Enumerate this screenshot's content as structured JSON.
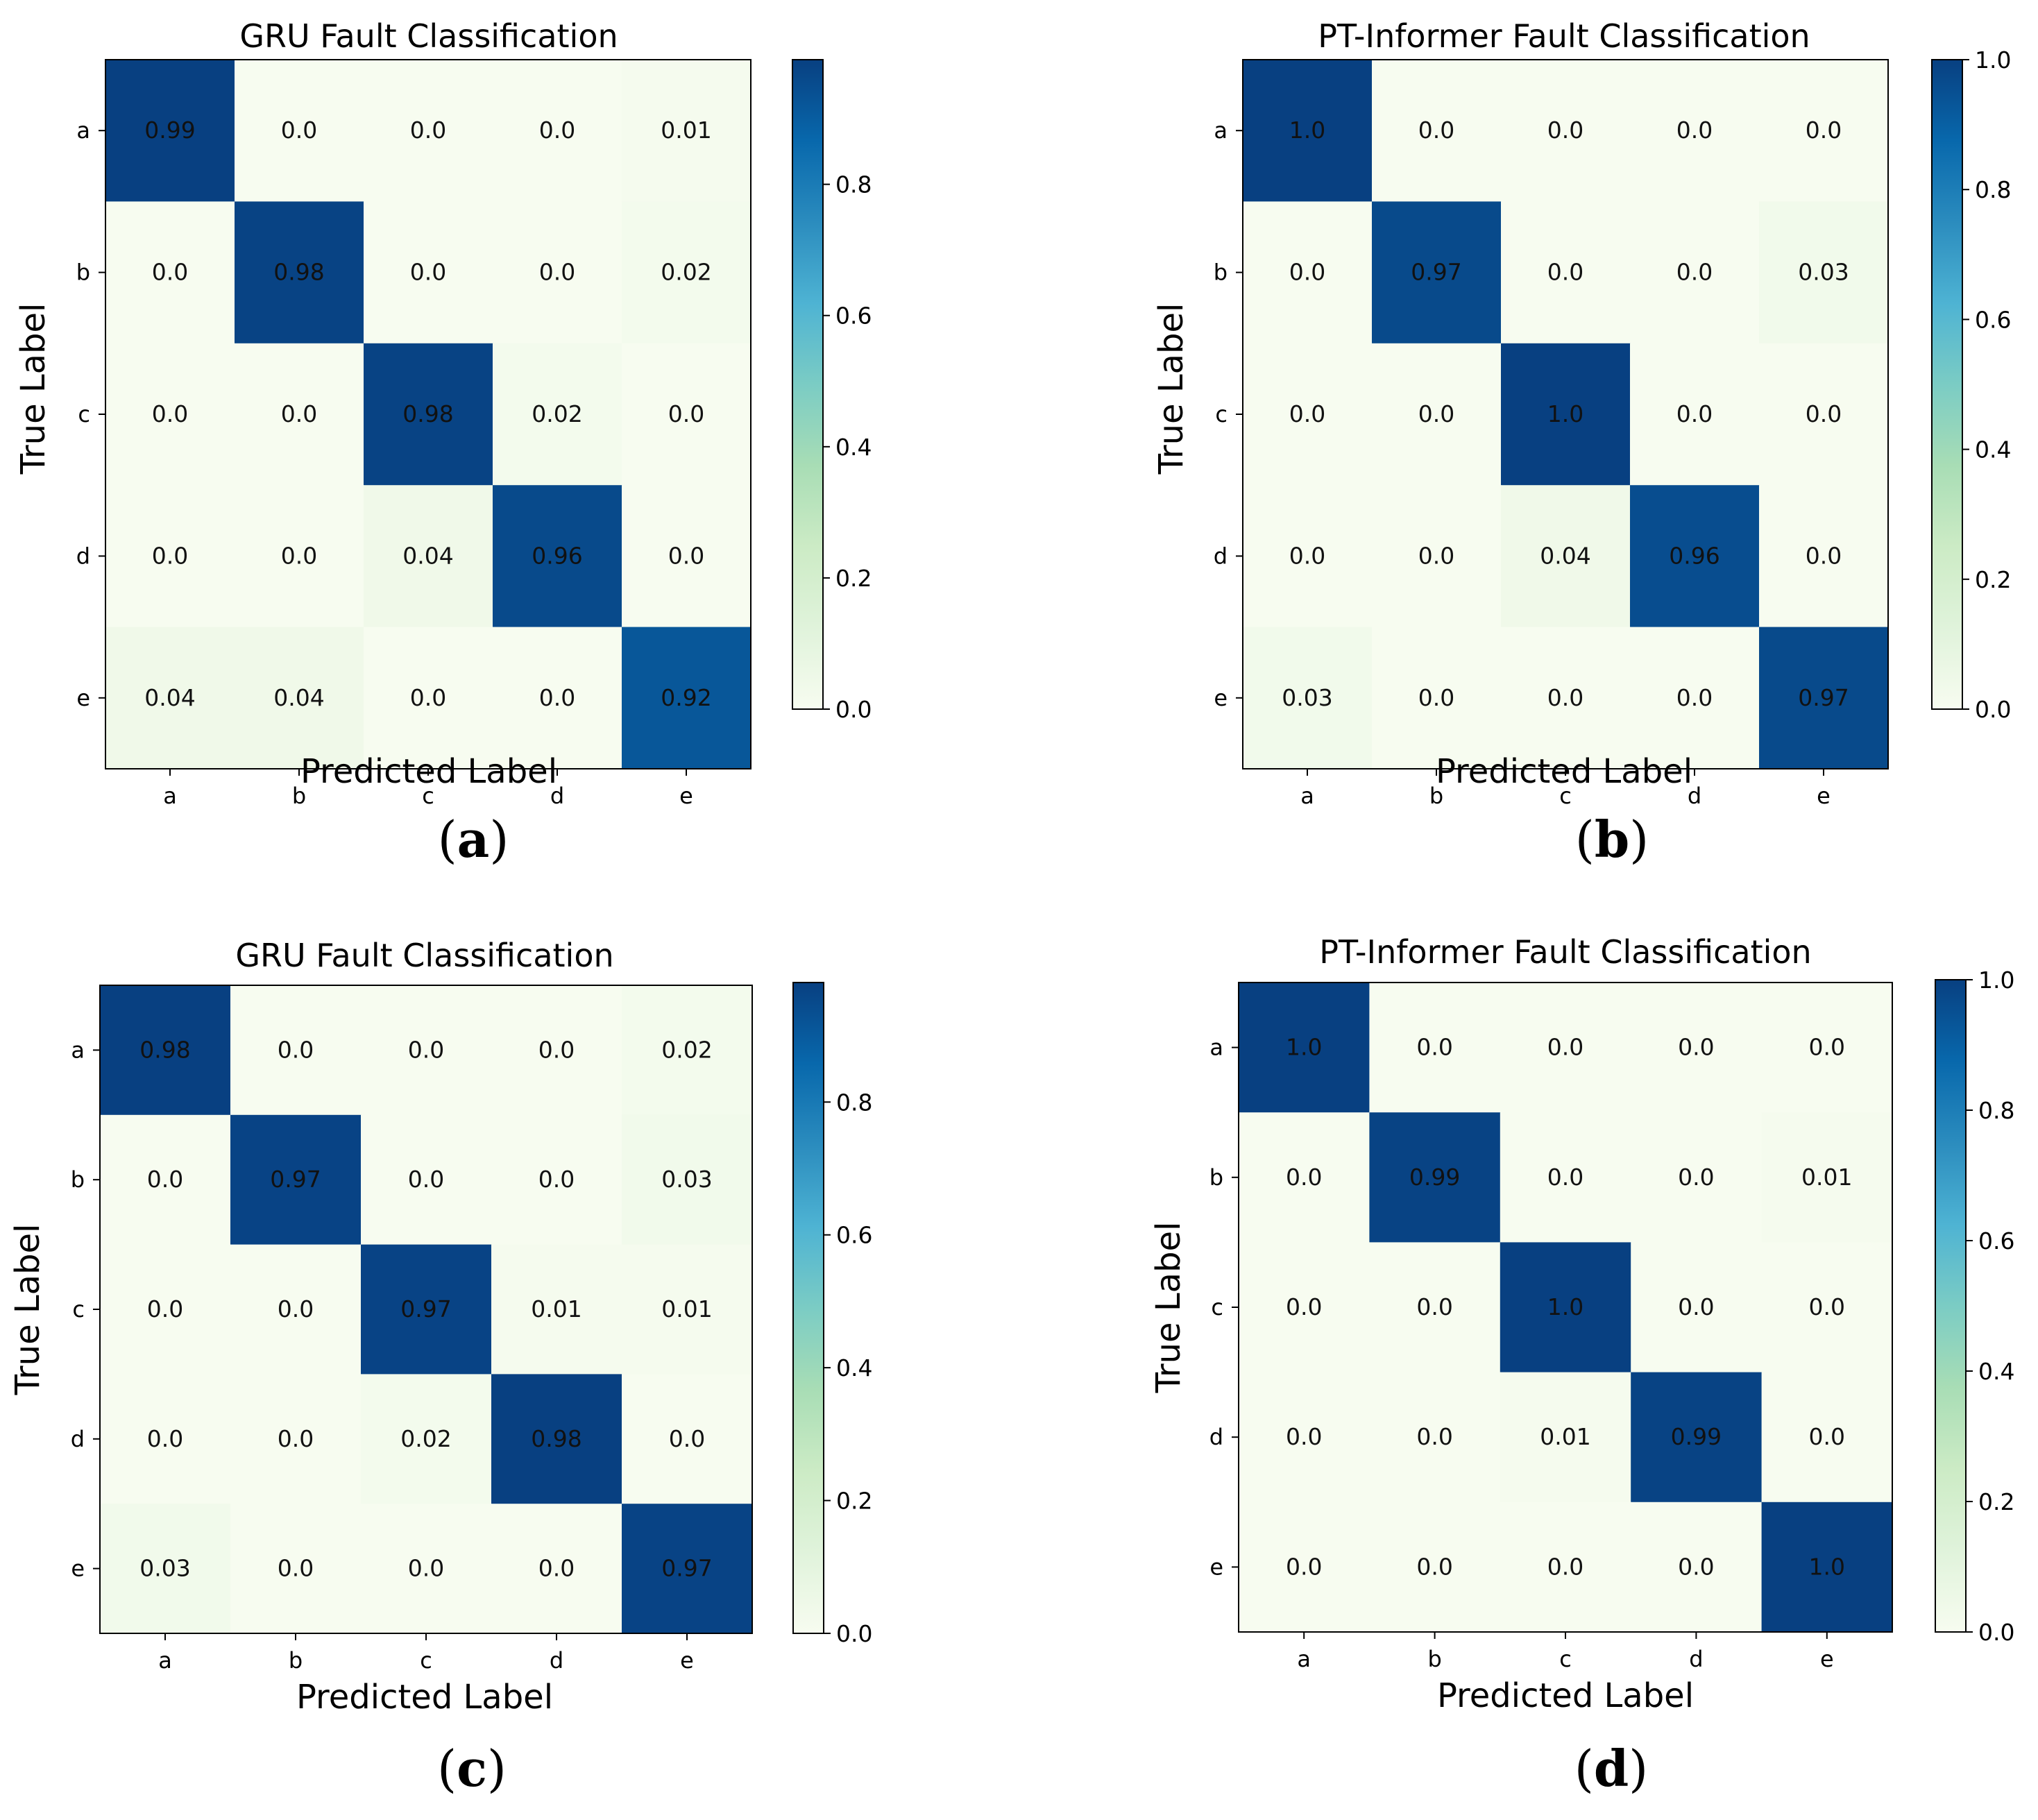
{
  "chart_data": [
    {
      "id": "a",
      "type": "heatmap",
      "title": "GRU Fault Classification",
      "xlabel": "Predicted Label",
      "ylabel": "True Label",
      "x_categories": [
        "a",
        "b",
        "c",
        "d",
        "e"
      ],
      "y_categories": [
        "a",
        "b",
        "c",
        "d",
        "e"
      ],
      "values": [
        [
          0.99,
          0.0,
          0.0,
          0.0,
          0.01
        ],
        [
          0.0,
          0.98,
          0.0,
          0.0,
          0.02
        ],
        [
          0.0,
          0.0,
          0.98,
          0.02,
          0.0
        ],
        [
          0.0,
          0.0,
          0.04,
          0.96,
          0.0
        ],
        [
          0.04,
          0.04,
          0.0,
          0.0,
          0.92
        ]
      ],
      "cell_labels": [
        [
          "0.99",
          "0.0",
          "0.0",
          "0.0",
          "0.01"
        ],
        [
          "0.0",
          "0.98",
          "0.0",
          "0.0",
          "0.02"
        ],
        [
          "0.0",
          "0.0",
          "0.98",
          "0.02",
          "0.0"
        ],
        [
          "0.0",
          "0.0",
          "0.04",
          "0.96",
          "0.0"
        ],
        [
          "0.04",
          "0.04",
          "0.0",
          "0.0",
          "0.92"
        ]
      ],
      "colormap": "GnBu",
      "colorbar_range": [
        0.0,
        0.99
      ],
      "colorbar_ticks": [
        "0.0",
        "0.2",
        "0.4",
        "0.6",
        "0.8"
      ],
      "panel_label": "a"
    },
    {
      "id": "b",
      "type": "heatmap",
      "title": "PT-Informer Fault Classification",
      "xlabel": "Predicted Label",
      "ylabel": "True Label",
      "x_categories": [
        "a",
        "b",
        "c",
        "d",
        "e"
      ],
      "y_categories": [
        "a",
        "b",
        "c",
        "d",
        "e"
      ],
      "values": [
        [
          1.0,
          0.0,
          0.0,
          0.0,
          0.0
        ],
        [
          0.0,
          0.97,
          0.0,
          0.0,
          0.03
        ],
        [
          0.0,
          0.0,
          1.0,
          0.0,
          0.0
        ],
        [
          0.0,
          0.0,
          0.04,
          0.96,
          0.0
        ],
        [
          0.03,
          0.0,
          0.0,
          0.0,
          0.97
        ]
      ],
      "cell_labels": [
        [
          "1.0",
          "0.0",
          "0.0",
          "0.0",
          "0.0"
        ],
        [
          "0.0",
          "0.97",
          "0.0",
          "0.0",
          "0.03"
        ],
        [
          "0.0",
          "0.0",
          "1.0",
          "0.0",
          "0.0"
        ],
        [
          "0.0",
          "0.0",
          "0.04",
          "0.96",
          "0.0"
        ],
        [
          "0.03",
          "0.0",
          "0.0",
          "0.0",
          "0.97"
        ]
      ],
      "colormap": "GnBu",
      "colorbar_range": [
        0.0,
        1.0
      ],
      "colorbar_ticks": [
        "0.0",
        "0.2",
        "0.4",
        "0.6",
        "0.8",
        "1.0"
      ],
      "panel_label": "b"
    },
    {
      "id": "c",
      "type": "heatmap",
      "title": "GRU Fault Classification",
      "xlabel": "Predicted Label",
      "ylabel": "True Label",
      "x_categories": [
        "a",
        "b",
        "c",
        "d",
        "e"
      ],
      "y_categories": [
        "a",
        "b",
        "c",
        "d",
        "e"
      ],
      "values": [
        [
          0.98,
          0.0,
          0.0,
          0.0,
          0.02
        ],
        [
          0.0,
          0.97,
          0.0,
          0.0,
          0.03
        ],
        [
          0.0,
          0.0,
          0.97,
          0.01,
          0.01
        ],
        [
          0.0,
          0.0,
          0.02,
          0.98,
          0.0
        ],
        [
          0.03,
          0.0,
          0.0,
          0.0,
          0.97
        ]
      ],
      "cell_labels": [
        [
          "0.98",
          "0.0",
          "0.0",
          "0.0",
          "0.02"
        ],
        [
          "0.0",
          "0.97",
          "0.0",
          "0.0",
          "0.03"
        ],
        [
          "0.0",
          "0.0",
          "0.97",
          "0.01",
          "0.01"
        ],
        [
          "0.0",
          "0.0",
          "0.02",
          "0.98",
          "0.0"
        ],
        [
          "0.03",
          "0.0",
          "0.0",
          "0.0",
          "0.97"
        ]
      ],
      "colormap": "GnBu",
      "colorbar_range": [
        0.0,
        0.98
      ],
      "colorbar_ticks": [
        "0.0",
        "0.2",
        "0.4",
        "0.6",
        "0.8"
      ],
      "panel_label": "c"
    },
    {
      "id": "d",
      "type": "heatmap",
      "title": "PT-Informer Fault Classification",
      "xlabel": "Predicted Label",
      "ylabel": "True Label",
      "x_categories": [
        "a",
        "b",
        "c",
        "d",
        "e"
      ],
      "y_categories": [
        "a",
        "b",
        "c",
        "d",
        "e"
      ],
      "values": [
        [
          1.0,
          0.0,
          0.0,
          0.0,
          0.0
        ],
        [
          0.0,
          0.99,
          0.0,
          0.0,
          0.01
        ],
        [
          0.0,
          0.0,
          1.0,
          0.0,
          0.0
        ],
        [
          0.0,
          0.0,
          0.01,
          0.99,
          0.0
        ],
        [
          0.0,
          0.0,
          0.0,
          0.0,
          1.0
        ]
      ],
      "cell_labels": [
        [
          "1.0",
          "0.0",
          "0.0",
          "0.0",
          "0.0"
        ],
        [
          "0.0",
          "0.99",
          "0.0",
          "0.0",
          "0.01"
        ],
        [
          "0.0",
          "0.0",
          "1.0",
          "0.0",
          "0.0"
        ],
        [
          "0.0",
          "0.0",
          "0.01",
          "0.99",
          "0.0"
        ],
        [
          "0.0",
          "0.0",
          "0.0",
          "0.0",
          "1.0"
        ]
      ],
      "colormap": "GnBu",
      "colorbar_range": [
        0.0,
        1.0
      ],
      "colorbar_ticks": [
        "0.0",
        "0.2",
        "0.4",
        "0.6",
        "0.8",
        "1.0"
      ],
      "panel_label": "d"
    }
  ]
}
